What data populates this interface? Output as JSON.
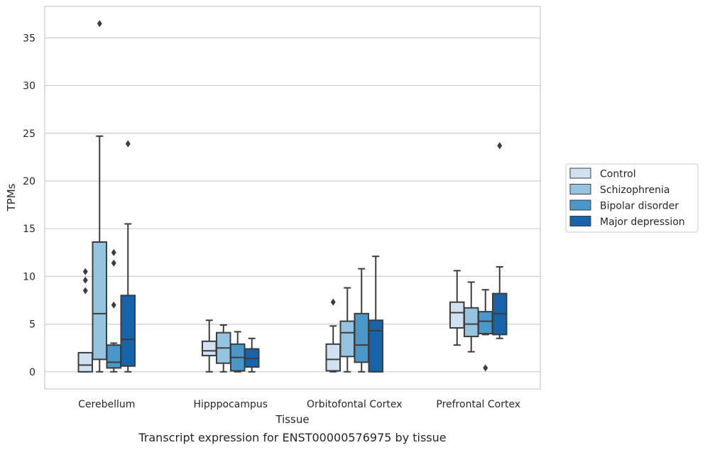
{
  "caption": "Transcript expression for ENST00000576975 by tissue",
  "chart_data": {
    "type": "box",
    "xlabel": "Tissue",
    "ylabel": "TPMs",
    "ylim": [
      -1.8,
      38.3
    ],
    "yticks": [
      0,
      5,
      10,
      15,
      20,
      25,
      30,
      35
    ],
    "grid": "horizontal",
    "legend_position": "right",
    "categories": [
      "Cerebellum",
      "Hipppocampus",
      "Orbitofontal Cortex",
      "Prefrontal Cortex"
    ],
    "series": [
      {
        "name": "Control",
        "color": "#d0e1f2",
        "boxes": [
          {
            "whislo": 0.0,
            "q1": 0.0,
            "med": 0.7,
            "q3": 2.0,
            "whishi": 2.0,
            "fliers": [
              8.5,
              9.6,
              10.5
            ]
          },
          {
            "whislo": 0.0,
            "q1": 1.7,
            "med": 2.2,
            "q3": 3.2,
            "whishi": 5.4,
            "fliers": []
          },
          {
            "whislo": 0.0,
            "q1": 0.1,
            "med": 1.3,
            "q3": 2.9,
            "whishi": 4.8,
            "fliers": [
              7.3
            ]
          },
          {
            "whislo": 2.8,
            "q1": 4.6,
            "med": 6.2,
            "q3": 7.3,
            "whishi": 10.6,
            "fliers": []
          }
        ]
      },
      {
        "name": "Schizophrenia",
        "color": "#94c4df",
        "boxes": [
          {
            "whislo": 0.0,
            "q1": 1.3,
            "med": 6.1,
            "q3": 13.6,
            "whishi": 24.7,
            "fliers": [
              36.5
            ]
          },
          {
            "whislo": 0.0,
            "q1": 0.9,
            "med": 2.5,
            "q3": 4.1,
            "whishi": 4.9,
            "fliers": []
          },
          {
            "whislo": 0.0,
            "q1": 1.6,
            "med": 4.1,
            "q3": 5.3,
            "whishi": 8.8,
            "fliers": []
          },
          {
            "whislo": 2.1,
            "q1": 3.7,
            "med": 5.0,
            "q3": 6.7,
            "whishi": 9.4,
            "fliers": []
          }
        ]
      },
      {
        "name": "Bipolar disorder",
        "color": "#4a98c9",
        "boxes": [
          {
            "whislo": 0.0,
            "q1": 0.4,
            "med": 1.0,
            "q3": 2.8,
            "whishi": 3.0,
            "fliers": [
              7.0,
              11.4,
              12.5
            ]
          },
          {
            "whislo": 0.0,
            "q1": 0.1,
            "med": 1.5,
            "q3": 2.9,
            "whishi": 4.2,
            "fliers": []
          },
          {
            "whislo": 0.0,
            "q1": 1.0,
            "med": 2.8,
            "q3": 6.1,
            "whishi": 10.8,
            "fliers": []
          },
          {
            "whislo": 3.9,
            "q1": 4.0,
            "med": 5.3,
            "q3": 6.3,
            "whishi": 8.6,
            "fliers": [
              0.4
            ]
          }
        ]
      },
      {
        "name": "Major depression",
        "color": "#1764ab",
        "boxes": [
          {
            "whislo": 0.0,
            "q1": 0.6,
            "med": 3.4,
            "q3": 8.0,
            "whishi": 15.5,
            "fliers": [
              23.9
            ]
          },
          {
            "whislo": 0.0,
            "q1": 0.5,
            "med": 1.4,
            "q3": 2.4,
            "whishi": 3.5,
            "fliers": []
          },
          {
            "whislo": 0.0,
            "q1": 0.0,
            "med": 4.3,
            "q3": 5.4,
            "whishi": 12.1,
            "fliers": []
          },
          {
            "whislo": 3.5,
            "q1": 3.9,
            "med": 6.1,
            "q3": 8.2,
            "whishi": 11.0,
            "fliers": [
              23.7
            ]
          }
        ]
      }
    ]
  }
}
